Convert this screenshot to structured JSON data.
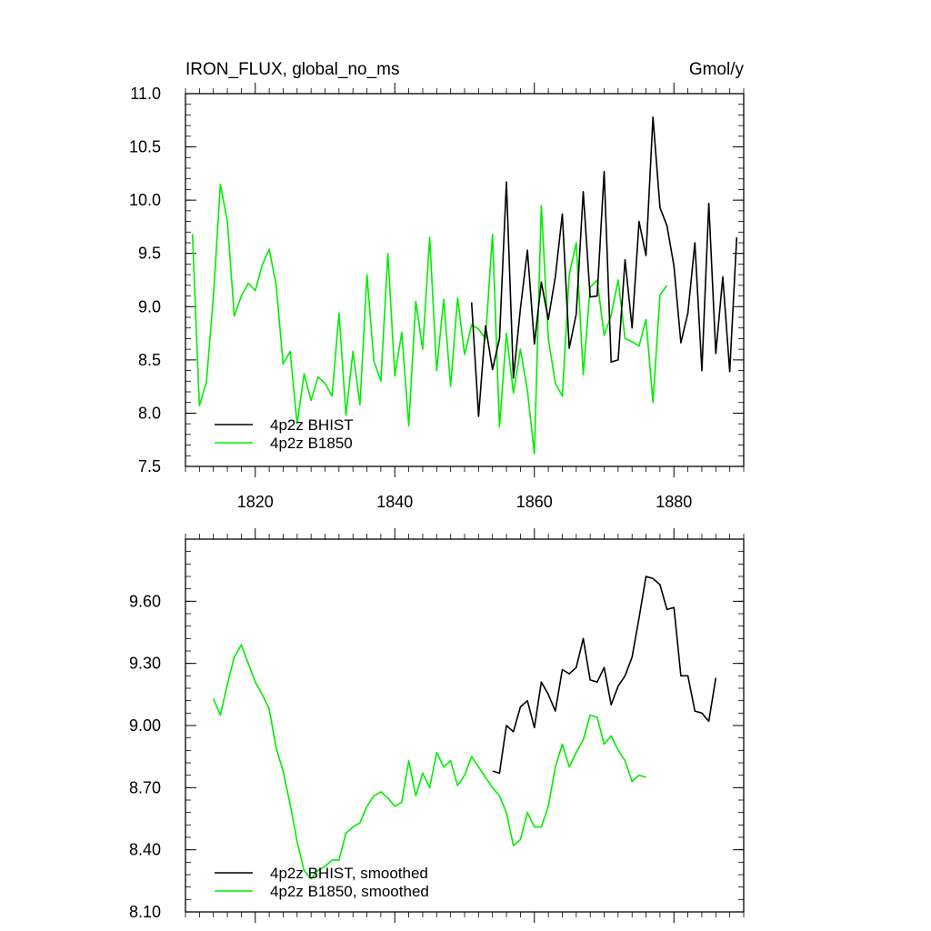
{
  "chart_data": [
    {
      "type": "line",
      "title": "IRON_FLUX, global_no_ms",
      "units": "Gmol/y",
      "xlim": [
        1810,
        1890
      ],
      "ylim": [
        7.5,
        11.0
      ],
      "yticks": [
        "7.5",
        "8.0",
        "8.5",
        "9.0",
        "9.5",
        "10.0",
        "10.5",
        "11.0"
      ],
      "xticks": [
        "1820",
        "1840",
        "1860",
        "1880"
      ],
      "legend_position": "bottom-left",
      "series": [
        {
          "name": "4p2z BHIST",
          "color": "#000000",
          "x": [
            1851,
            1852,
            1853,
            1854,
            1855,
            1856,
            1857,
            1858,
            1859,
            1860,
            1861,
            1862,
            1863,
            1864,
            1865,
            1866,
            1867,
            1868,
            1869,
            1870,
            1871,
            1872,
            1873,
            1874,
            1875,
            1876,
            1877,
            1878,
            1879,
            1880,
            1881,
            1882,
            1883,
            1884,
            1885,
            1886,
            1887,
            1888,
            1889
          ],
          "y": [
            9.04,
            7.97,
            8.82,
            8.41,
            8.7,
            10.17,
            8.33,
            8.98,
            9.53,
            8.65,
            9.23,
            8.88,
            9.28,
            9.87,
            8.61,
            8.93,
            10.08,
            9.09,
            9.1,
            10.27,
            8.48,
            8.5,
            9.44,
            8.8,
            9.8,
            9.48,
            10.78,
            9.93,
            9.76,
            9.38,
            8.66,
            8.94,
            9.6,
            8.4,
            9.97,
            8.56,
            9.28,
            8.39,
            9.65
          ]
        },
        {
          "name": "4p2z B1850",
          "color": "#00ee00",
          "x": [
            1811,
            1812,
            1813,
            1814,
            1815,
            1816,
            1817,
            1818,
            1819,
            1820,
            1821,
            1822,
            1823,
            1824,
            1825,
            1826,
            1827,
            1828,
            1829,
            1830,
            1831,
            1832,
            1833,
            1834,
            1835,
            1836,
            1837,
            1838,
            1839,
            1840,
            1841,
            1842,
            1843,
            1844,
            1845,
            1846,
            1847,
            1848,
            1849,
            1850,
            1851,
            1852,
            1853,
            1854,
            1855,
            1856,
            1857,
            1858,
            1859,
            1860,
            1861,
            1862,
            1863,
            1864,
            1865,
            1866,
            1867,
            1868,
            1869,
            1870,
            1871,
            1872,
            1873,
            1874,
            1875,
            1876,
            1877,
            1878,
            1879
          ],
          "y": [
            9.68,
            8.07,
            8.29,
            9.09,
            10.15,
            9.8,
            8.91,
            9.1,
            9.22,
            9.15,
            9.39,
            9.54,
            9.2,
            8.46,
            8.58,
            7.9,
            8.37,
            8.12,
            8.34,
            8.28,
            8.16,
            8.94,
            7.98,
            8.58,
            8.08,
            9.3,
            8.49,
            8.3,
            9.5,
            8.35,
            8.76,
            7.88,
            9.05,
            8.6,
            9.65,
            8.4,
            9.07,
            8.25,
            9.08,
            8.55,
            8.83,
            8.79,
            8.7,
            9.68,
            7.87,
            8.75,
            8.19,
            8.6,
            8.21,
            7.62,
            9.95,
            8.7,
            8.28,
            8.16,
            9.3,
            9.6,
            8.36,
            9.18,
            9.25,
            8.73,
            8.92,
            9.25,
            8.7,
            8.67,
            8.63,
            8.88,
            8.1,
            9.11,
            9.2
          ]
        }
      ]
    },
    {
      "type": "line",
      "xlim": [
        1810,
        1890
      ],
      "ylim": [
        8.1,
        9.9
      ],
      "yticks": [
        "8.10",
        "8.40",
        "8.70",
        "9.00",
        "9.30",
        "9.60"
      ],
      "legend_position": "bottom-left",
      "series": [
        {
          "name": "4p2z BHIST, smoothed",
          "color": "#000000",
          "x": [
            1854,
            1855,
            1856,
            1857,
            1858,
            1859,
            1860,
            1861,
            1862,
            1863,
            1864,
            1865,
            1866,
            1867,
            1868,
            1869,
            1870,
            1871,
            1872,
            1873,
            1874,
            1875,
            1876,
            1877,
            1878,
            1879,
            1880,
            1881,
            1882,
            1883,
            1884,
            1885,
            1886
          ],
          "y": [
            8.78,
            8.77,
            9.0,
            8.97,
            9.09,
            9.12,
            8.99,
            9.21,
            9.15,
            9.07,
            9.27,
            9.25,
            9.28,
            9.42,
            9.22,
            9.21,
            9.28,
            9.1,
            9.19,
            9.24,
            9.33,
            9.52,
            9.72,
            9.71,
            9.68,
            9.56,
            9.57,
            9.24,
            9.24,
            9.07,
            9.06,
            9.02,
            9.23
          ]
        },
        {
          "name": "4p2z B1850, smoothed",
          "color": "#00ee00",
          "x": [
            1814,
            1815,
            1816,
            1817,
            1818,
            1819,
            1820,
            1821,
            1822,
            1823,
            1824,
            1825,
            1826,
            1827,
            1828,
            1829,
            1830,
            1831,
            1832,
            1833,
            1834,
            1835,
            1836,
            1837,
            1838,
            1839,
            1840,
            1841,
            1842,
            1843,
            1844,
            1845,
            1846,
            1847,
            1848,
            1849,
            1850,
            1851,
            1852,
            1853,
            1854,
            1855,
            1856,
            1857,
            1858,
            1859,
            1860,
            1861,
            1862,
            1863,
            1864,
            1865,
            1866,
            1867,
            1868,
            1869,
            1870,
            1871,
            1872,
            1873,
            1874,
            1875,
            1876
          ],
          "y": [
            9.13,
            9.05,
            9.2,
            9.33,
            9.39,
            9.3,
            9.21,
            9.15,
            9.08,
            8.89,
            8.78,
            8.62,
            8.44,
            8.3,
            8.26,
            8.3,
            8.32,
            8.35,
            8.35,
            8.48,
            8.51,
            8.53,
            8.61,
            8.66,
            8.68,
            8.65,
            8.61,
            8.63,
            8.83,
            8.66,
            8.77,
            8.7,
            8.87,
            8.8,
            8.83,
            8.71,
            8.76,
            8.85,
            8.8,
            8.75,
            8.7,
            8.66,
            8.58,
            8.42,
            8.45,
            8.58,
            8.51,
            8.51,
            8.61,
            8.8,
            8.91,
            8.8,
            8.87,
            8.93,
            9.05,
            9.04,
            8.91,
            8.95,
            8.88,
            8.83,
            8.73,
            8.76,
            8.75
          ]
        }
      ]
    }
  ]
}
